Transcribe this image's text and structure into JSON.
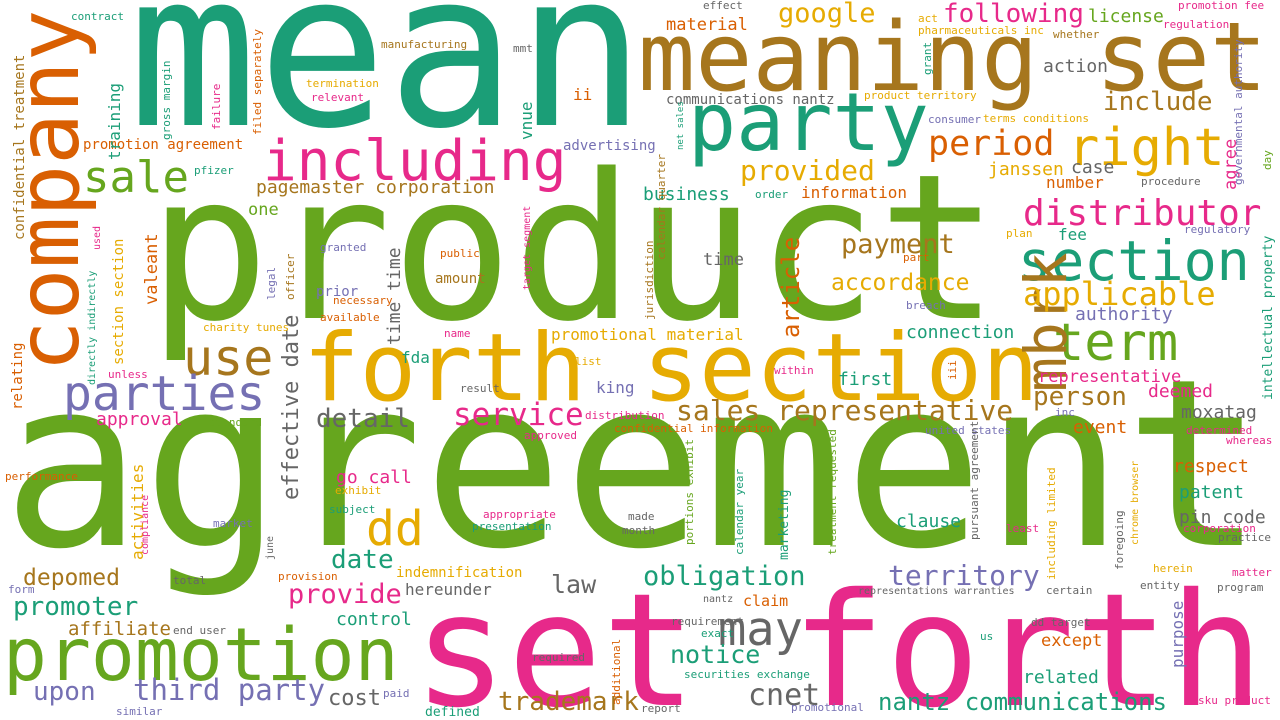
{
  "words": [
    {
      "text": "product",
      "color": "#66a61e"
    },
    {
      "text": "agreement",
      "color": "#66a61e"
    },
    {
      "text": "mean",
      "color": "#1b9e77"
    },
    {
      "text": "set forth",
      "color": "#e7298a"
    },
    {
      "text": "meaning set",
      "color": "#a6761d"
    },
    {
      "text": "forth section",
      "color": "#e6ab02"
    },
    {
      "text": "company",
      "color": "#d95f02"
    },
    {
      "text": "promotion",
      "color": "#66a61e"
    },
    {
      "text": "party",
      "color": "#1b9e77"
    },
    {
      "text": "including",
      "color": "#e7298a"
    },
    {
      "text": "section",
      "color": "#1b9e77"
    },
    {
      "text": "right",
      "color": "#e6ab02"
    },
    {
      "text": "distributor",
      "color": "#e7298a"
    },
    {
      "text": "term",
      "color": "#66a61e"
    },
    {
      "text": "mbrk",
      "color": "#a6761d"
    },
    {
      "text": "use",
      "color": "#a6761d"
    },
    {
      "text": "parties",
      "color": "#7570b3"
    },
    {
      "text": "sale",
      "color": "#66a61e"
    },
    {
      "text": "dd",
      "color": "#e6ab02"
    },
    {
      "text": "may",
      "color": "#666666"
    },
    {
      "text": "applicable",
      "color": "#e6ab02"
    },
    {
      "text": "period",
      "color": "#d95f02"
    },
    {
      "text": "provided",
      "color": "#e6ab02"
    },
    {
      "text": "payment",
      "color": "#a6761d"
    },
    {
      "text": "accordance",
      "color": "#e6ab02"
    },
    {
      "text": "following",
      "color": "#e7298a"
    },
    {
      "text": "google",
      "color": "#e6ab02"
    },
    {
      "text": "include",
      "color": "#a6761d"
    },
    {
      "text": "action",
      "color": "#666666"
    },
    {
      "text": "license",
      "color": "#66a61e"
    },
    {
      "text": "cnet",
      "color": "#666666"
    },
    {
      "text": "nantz communications",
      "color": "#1b9e77"
    },
    {
      "text": "third party",
      "color": "#7570b3"
    },
    {
      "text": "cost",
      "color": "#666666"
    },
    {
      "text": "upon",
      "color": "#7570b3"
    },
    {
      "text": "trademark",
      "color": "#a6761d"
    },
    {
      "text": "territory",
      "color": "#7570b3"
    },
    {
      "text": "obligation",
      "color": "#1b9e77"
    },
    {
      "text": "notice",
      "color": "#1b9e77"
    },
    {
      "text": "provide",
      "color": "#e7298a"
    },
    {
      "text": "promoter",
      "color": "#1b9e77"
    },
    {
      "text": "depomed",
      "color": "#a6761d"
    },
    {
      "text": "affiliate",
      "color": "#a6761d"
    },
    {
      "text": "date",
      "color": "#1b9e77"
    },
    {
      "text": "law",
      "color": "#666666"
    },
    {
      "text": "service",
      "color": "#e7298a"
    },
    {
      "text": "sales representative",
      "color": "#a6761d"
    },
    {
      "text": "detail",
      "color": "#666666"
    },
    {
      "text": "approval",
      "color": "#e7298a"
    },
    {
      "text": "person",
      "color": "#a6761d"
    },
    {
      "text": "representative",
      "color": "#e7298a"
    },
    {
      "text": "deemed",
      "color": "#e7298a"
    },
    {
      "text": "moxatag",
      "color": "#666666"
    },
    {
      "text": "event",
      "color": "#d95f02"
    },
    {
      "text": "respect",
      "color": "#d95f02"
    },
    {
      "text": "patent",
      "color": "#1b9e77"
    },
    {
      "text": "pin code",
      "color": "#666666"
    },
    {
      "text": "clause",
      "color": "#1b9e77"
    },
    {
      "text": "control",
      "color": "#1b9e77"
    },
    {
      "text": "go call",
      "color": "#e7298a"
    },
    {
      "text": "authority",
      "color": "#7570b3"
    },
    {
      "text": "connection",
      "color": "#1b9e77"
    },
    {
      "text": "first",
      "color": "#1b9e77"
    },
    {
      "text": "article",
      "color": "#d95f02"
    },
    {
      "text": "time time",
      "color": "#666666"
    },
    {
      "text": "effective date",
      "color": "#666666"
    },
    {
      "text": "fda",
      "color": "#1b9e77"
    },
    {
      "text": "time",
      "color": "#666666"
    },
    {
      "text": "business",
      "color": "#1b9e77"
    },
    {
      "text": "information",
      "color": "#d95f02"
    },
    {
      "text": "pagemaster corporation",
      "color": "#a6761d"
    },
    {
      "text": "communications nantz",
      "color": "#666666"
    },
    {
      "text": "advertising",
      "color": "#7570b3"
    },
    {
      "text": "promotion agreement",
      "color": "#d95f02"
    },
    {
      "text": "one",
      "color": "#66a61e"
    },
    {
      "text": "janssen",
      "color": "#e6ab02"
    },
    {
      "text": "case",
      "color": "#666666"
    },
    {
      "text": "number",
      "color": "#d95f02"
    },
    {
      "text": "fee",
      "color": "#1b9e77"
    },
    {
      "text": "agree",
      "color": "#e7298a"
    },
    {
      "text": "valeant",
      "color": "#d95f02"
    },
    {
      "text": "vnue",
      "color": "#1b9e77"
    },
    {
      "text": "training",
      "color": "#1b9e77"
    },
    {
      "text": "ii",
      "color": "#d95f02"
    },
    {
      "text": "material",
      "color": "#d95f02"
    },
    {
      "text": "amount",
      "color": "#a6761d"
    },
    {
      "text": "prior",
      "color": "#7570b3"
    },
    {
      "text": "promotional material",
      "color": "#e6ab02"
    },
    {
      "text": "king",
      "color": "#7570b3"
    },
    {
      "text": "market",
      "color": "#7570b3"
    },
    {
      "text": "activities",
      "color": "#e6ab02"
    },
    {
      "text": "section section",
      "color": "#e6ab02"
    },
    {
      "text": "confidential treatment",
      "color": "#a6761d"
    },
    {
      "text": "relating",
      "color": "#d95f02"
    },
    {
      "text": "indemnification",
      "color": "#e6ab02"
    },
    {
      "text": "hereunder",
      "color": "#666666"
    },
    {
      "text": "claim",
      "color": "#d95f02"
    },
    {
      "text": "except",
      "color": "#d95f02"
    },
    {
      "text": "related",
      "color": "#1b9e77"
    },
    {
      "text": "purpose",
      "color": "#7570b3"
    },
    {
      "text": "contract",
      "color": "#1b9e77"
    },
    {
      "text": "effect",
      "color": "#666666"
    },
    {
      "text": "promotion fee",
      "color": "#e7298a"
    },
    {
      "text": "act",
      "color": "#e6ab02"
    },
    {
      "text": "pharmaceuticals inc",
      "color": "#e6ab02"
    },
    {
      "text": "whether",
      "color": "#a6761d"
    },
    {
      "text": "regulation",
      "color": "#e7298a"
    },
    {
      "text": "manufacturing",
      "color": "#a6761d"
    },
    {
      "text": "mmt",
      "color": "#666666"
    },
    {
      "text": "termination",
      "color": "#e6ab02"
    },
    {
      "text": "relevant",
      "color": "#e7298a"
    },
    {
      "text": "product territory",
      "color": "#e6ab02"
    },
    {
      "text": "terms conditions",
      "color": "#e6ab02"
    },
    {
      "text": "consumer",
      "color": "#7570b3"
    },
    {
      "text": "grant",
      "color": "#1b9e77"
    },
    {
      "text": "governmental authority",
      "color": "#7570b3"
    },
    {
      "text": "day",
      "color": "#66a61e"
    },
    {
      "text": "net sales",
      "color": "#1b9e77"
    },
    {
      "text": "gross margin",
      "color": "#1b9e77"
    },
    {
      "text": "failure",
      "color": "#e7298a"
    },
    {
      "text": "filed separately",
      "color": "#d95f02"
    },
    {
      "text": "pfizer",
      "color": "#1b9e77"
    },
    {
      "text": "order",
      "color": "#1b9e77"
    },
    {
      "text": "procedure",
      "color": "#666666"
    },
    {
      "text": "regulatory",
      "color": "#7570b3"
    },
    {
      "text": "plan",
      "color": "#e6ab02"
    },
    {
      "text": "target segment",
      "color": "#e7298a"
    },
    {
      "text": "jurisdiction",
      "color": "#a6761d"
    },
    {
      "text": "calendar quarter",
      "color": "#a6761d"
    },
    {
      "text": "granted",
      "color": "#7570b3"
    },
    {
      "text": "public",
      "color": "#d95f02"
    },
    {
      "text": "part",
      "color": "#d95f02"
    },
    {
      "text": "legal",
      "color": "#7570b3"
    },
    {
      "text": "officer",
      "color": "#a6761d"
    },
    {
      "text": "necessary",
      "color": "#d95f02"
    },
    {
      "text": "available",
      "color": "#d95f02"
    },
    {
      "text": "breach",
      "color": "#7570b3"
    },
    {
      "text": "intellectual property",
      "color": "#1b9e77"
    },
    {
      "text": "directly indirectly",
      "color": "#1b9e77"
    },
    {
      "text": "used",
      "color": "#e7298a"
    },
    {
      "text": "charity tunes",
      "color": "#e6ab02"
    },
    {
      "text": "name",
      "color": "#e7298a"
    },
    {
      "text": "list",
      "color": "#e6ab02"
    },
    {
      "text": "within",
      "color": "#e7298a"
    },
    {
      "text": "iii",
      "color": "#d95f02"
    },
    {
      "text": "unless",
      "color": "#e7298a"
    },
    {
      "text": "result",
      "color": "#666666"
    },
    {
      "text": "distribution",
      "color": "#e7298a"
    },
    {
      "text": "standard",
      "color": "#66a61e"
    },
    {
      "text": "approved",
      "color": "#e7298a"
    },
    {
      "text": "confidential information",
      "color": "#d95f02"
    },
    {
      "text": "united states",
      "color": "#7570b3"
    },
    {
      "text": "inc",
      "color": "#7570b3"
    },
    {
      "text": "determined",
      "color": "#e7298a"
    },
    {
      "text": "whereas",
      "color": "#e7298a"
    },
    {
      "text": "performance",
      "color": "#d95f02"
    },
    {
      "text": "exhibit",
      "color": "#e6ab02"
    },
    {
      "text": "appropriate",
      "color": "#e7298a"
    },
    {
      "text": "presentation",
      "color": "#1b9e77"
    },
    {
      "text": "subject",
      "color": "#1b9e77"
    },
    {
      "text": "made",
      "color": "#666666"
    },
    {
      "text": "month",
      "color": "#666666"
    },
    {
      "text": "compliance",
      "color": "#e7298a"
    },
    {
      "text": "june",
      "color": "#666666"
    },
    {
      "text": "pursuant agreement",
      "color": "#666666"
    },
    {
      "text": "including limited",
      "color": "#e6ab02"
    },
    {
      "text": "foregoing",
      "color": "#666666"
    },
    {
      "text": "chrome browser",
      "color": "#e6ab02"
    },
    {
      "text": "least",
      "color": "#e7298a"
    },
    {
      "text": "corporation",
      "color": "#e7298a"
    },
    {
      "text": "practice",
      "color": "#666666"
    },
    {
      "text": "portions exhibit",
      "color": "#66a61e"
    },
    {
      "text": "calendar year",
      "color": "#1b9e77"
    },
    {
      "text": "marketing",
      "color": "#1b9e77"
    },
    {
      "text": "treatment requested",
      "color": "#66a61e"
    },
    {
      "text": "herein",
      "color": "#e6ab02"
    },
    {
      "text": "matter",
      "color": "#e7298a"
    },
    {
      "text": "entity",
      "color": "#666666"
    },
    {
      "text": "program",
      "color": "#666666"
    },
    {
      "text": "form",
      "color": "#7570b3"
    },
    {
      "text": "total",
      "color": "#666666"
    },
    {
      "text": "provision",
      "color": "#d95f02"
    },
    {
      "text": "certain",
      "color": "#666666"
    },
    {
      "text": "nantz",
      "color": "#666666"
    },
    {
      "text": "representations warranties",
      "color": "#666666"
    },
    {
      "text": "requirement",
      "color": "#666666"
    },
    {
      "text": "dd target",
      "color": "#666666"
    },
    {
      "text": "exact",
      "color": "#1b9e77"
    },
    {
      "text": "us",
      "color": "#1b9e77"
    },
    {
      "text": "securities exchange",
      "color": "#1b9e77"
    },
    {
      "text": "additional",
      "color": "#d95f02"
    },
    {
      "text": "required",
      "color": "#666666"
    },
    {
      "text": "end user",
      "color": "#666666"
    },
    {
      "text": "paid",
      "color": "#7570b3"
    },
    {
      "text": "similar",
      "color": "#7570b3"
    },
    {
      "text": "report",
      "color": "#666666"
    },
    {
      "text": "defined",
      "color": "#1b9e77"
    },
    {
      "text": "promotional",
      "color": "#7570b3"
    },
    {
      "text": "sku product",
      "color": "#e7298a"
    }
  ]
}
